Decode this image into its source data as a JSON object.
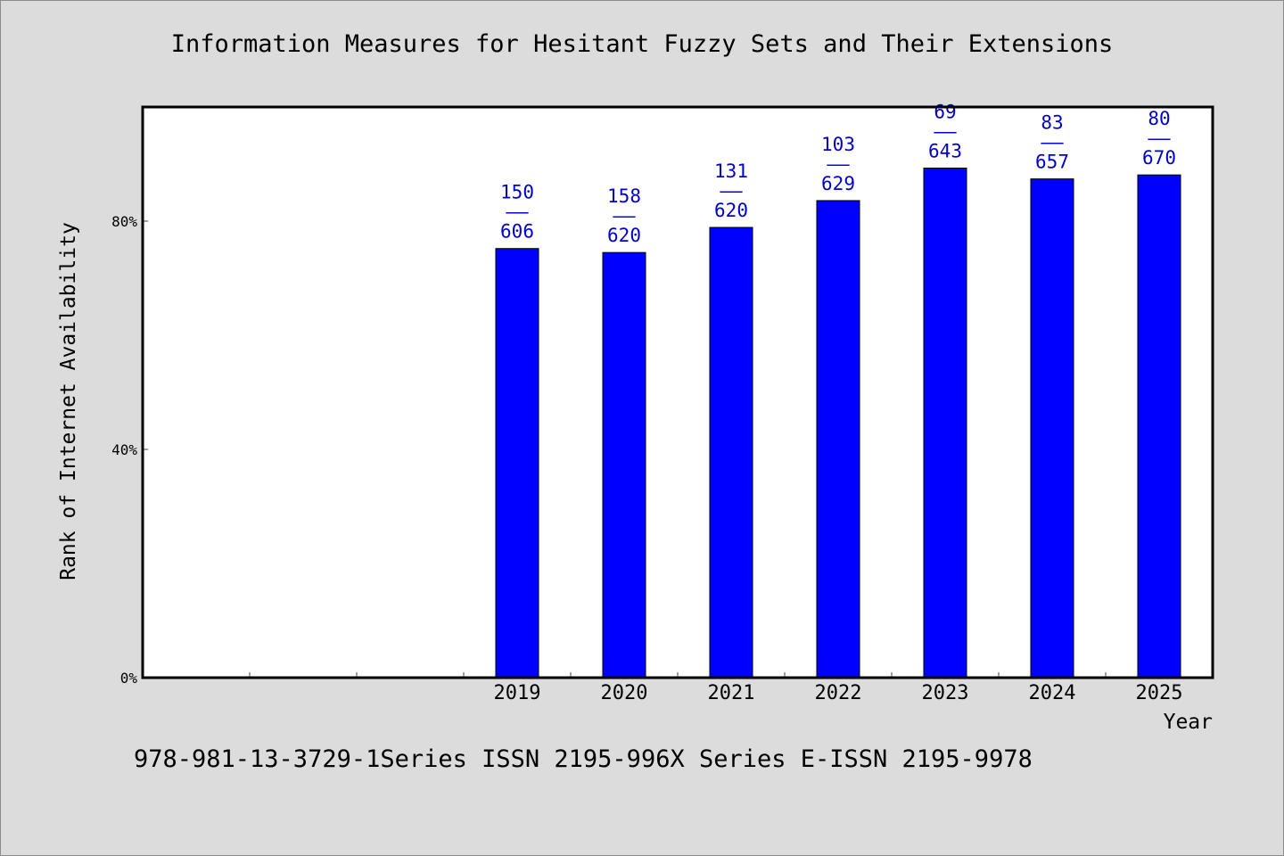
{
  "title": "Information Measures for Hesitant Fuzzy Sets and Their Extensions",
  "footer": "978-981-13-3729-1Series ISSN 2195-996X Series E-ISSN 2195-9978",
  "colors": {
    "background": "#dcdcdc",
    "plot_background": "#ffffff",
    "bar": "#0000ff",
    "label": "#0000cc",
    "axis": "#000000"
  },
  "chart_data": {
    "type": "bar",
    "title": "Information Measures for Hesitant Fuzzy Sets and Their Extensions",
    "xlabel": "Year",
    "ylabel": "Rank of Internet Availability",
    "categories": [
      "",
      "",
      "",
      "2019",
      "2020",
      "2021",
      "2022",
      "2023",
      "2024",
      "2025"
    ],
    "values": [
      null,
      null,
      null,
      75.2,
      74.5,
      78.9,
      83.6,
      89.3,
      87.4,
      88.1
    ],
    "data_labels": [
      null,
      null,
      null,
      {
        "top": "150",
        "sep": "——",
        "bottom": "606"
      },
      {
        "top": "158",
        "sep": "——",
        "bottom": "620"
      },
      {
        "top": "131",
        "sep": "——",
        "bottom": "620"
      },
      {
        "top": "103",
        "sep": "——",
        "bottom": "629"
      },
      {
        "top": "69",
        "sep": "——",
        "bottom": "643"
      },
      {
        "top": "83",
        "sep": "——",
        "bottom": "657"
      },
      {
        "top": "80",
        "sep": "——",
        "bottom": "670"
      }
    ],
    "y_ticks": [
      {
        "value": 0,
        "label": "0%"
      },
      {
        "value": 40,
        "label": "40%"
      },
      {
        "value": 80,
        "label": "80%"
      }
    ],
    "ylim": [
      0,
      100
    ],
    "grid": false,
    "legend": "none"
  }
}
